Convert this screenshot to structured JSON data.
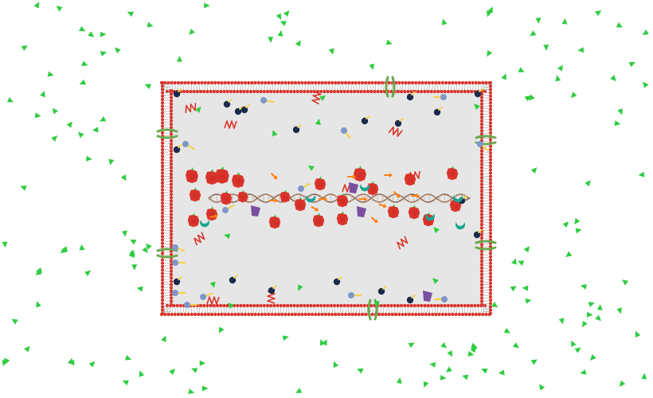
{
  "diagram": {
    "title": "",
    "labels": [],
    "colors": {
      "background": "#ffffff",
      "cytoplasm": "#e6e6e6",
      "membrane_head": "#d9342b",
      "membrane_tail": "#9a9a9a",
      "external_triangle": "#2ecc40",
      "ribosome": "#d9342b",
      "mrna": "#d9342b",
      "dna": "#a07860",
      "protein_navy": "#1b2a4a",
      "protein_purple": "#7a4fa0",
      "protein_teal": "#1aa392",
      "arrow_orange": "#ff7f0e",
      "channel_green": "#6aa84f",
      "blue_lollipop": "#7f96c8",
      "yellow_stick": "#f2d24b"
    },
    "glyphs": [
      "membrane-bilayer",
      "ribosome",
      "mrna-strand",
      "dna-helix",
      "navy-protein",
      "purple-enzyme",
      "teal-protein",
      "orange-arrow-molecule",
      "membrane-channel",
      "lollipop-receptor",
      "external-triangle-molecule"
    ]
  }
}
